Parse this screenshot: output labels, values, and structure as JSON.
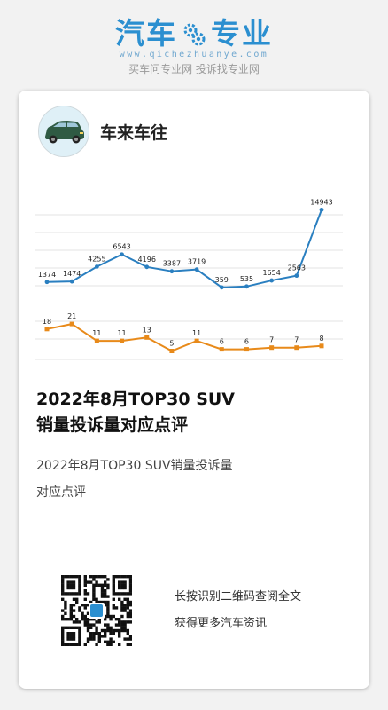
{
  "brand": {
    "name_left": "汽车",
    "name_right": "专业",
    "url": "www.qichezhuanye.com",
    "slogan": "买车问专业网 投诉找专业网",
    "color": "#2b8fd0"
  },
  "author": {
    "name": "车来车往",
    "avatar_icon": "car-icon"
  },
  "post": {
    "title_line1": "2022年8月TOP30 SUV",
    "title_line2": "销量投诉量对应点评",
    "desc_line1": "2022年8月TOP30 SUV销量投诉量",
    "desc_line2": "对应点评"
  },
  "cta": {
    "line1": "长按识别二维码查阅全文",
    "line2": "获得更多汽车资讯"
  },
  "chart_data": {
    "type": "line",
    "grid": true,
    "series": [
      {
        "color": "#2a7fc0",
        "values": [
          1374,
          1474,
          4255,
          6543,
          4196,
          3387,
          3719,
          359,
          535,
          1654,
          2563,
          14943
        ],
        "labels": [
          "1374",
          "1474",
          "4255",
          "6543",
          "4196",
          "3387",
          "3719",
          "359",
          "535",
          "1654",
          "2563",
          "14943"
        ]
      },
      {
        "color": "#e88a1a",
        "values": [
          18,
          21,
          11,
          11,
          13,
          5,
          11,
          6,
          6,
          7,
          7,
          8
        ],
        "labels": [
          "18",
          "21",
          "11",
          "11",
          "13",
          "5",
          "11",
          "6",
          "6",
          "7",
          "7",
          "8"
        ]
      }
    ]
  }
}
